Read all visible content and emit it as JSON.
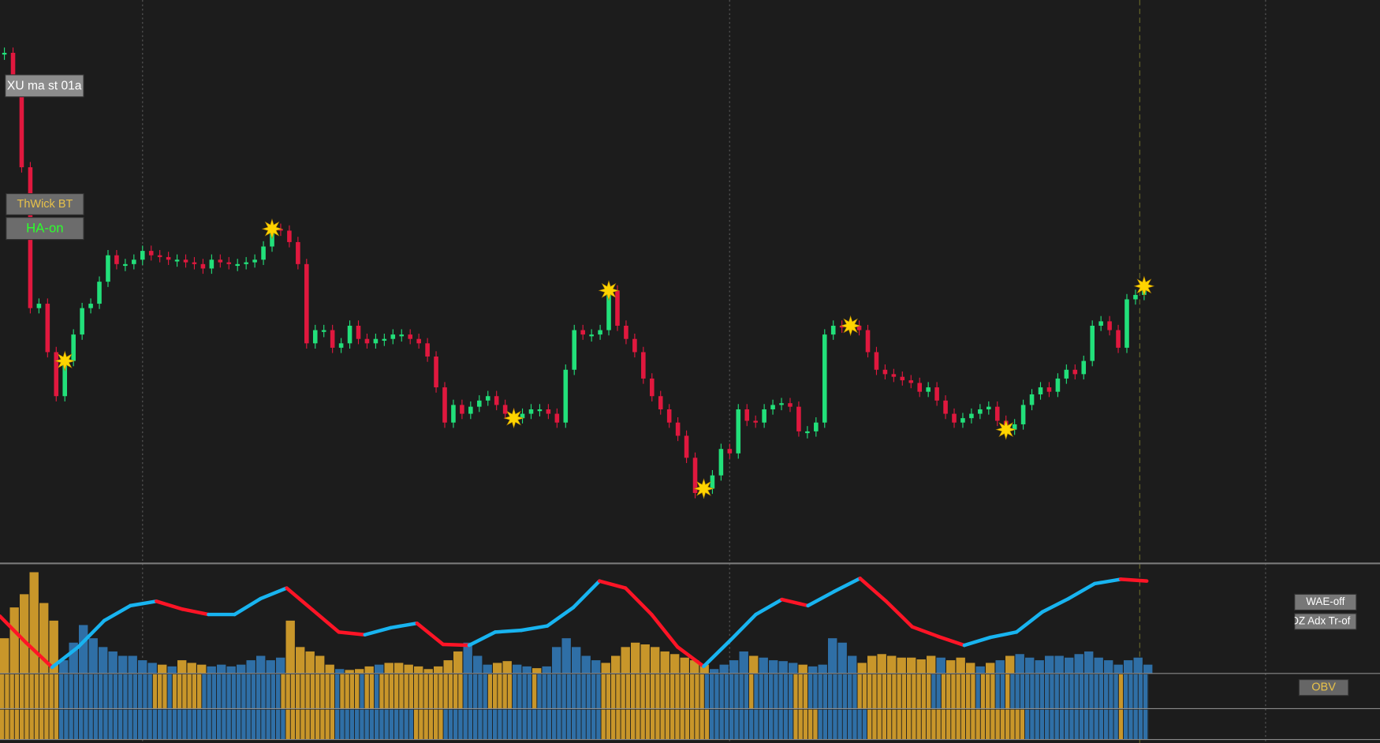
{
  "buttons": {
    "ma": "XU ma st 01a",
    "thwick": "ThWick BT",
    "ha": "HA-on",
    "wae": "WAE-off",
    "adx": "DZ Adx Tr-of",
    "obv": "OBV"
  },
  "chart_data": {
    "type": "candlestick",
    "ylim": [
      0,
      640
    ],
    "up_color": "#22e07a",
    "down_color": "#e0183e",
    "close": [
      580,
      540,
      450,
      290,
      295,
      240,
      190,
      230,
      260,
      290,
      295,
      320,
      350,
      340,
      340,
      345,
      355,
      350,
      348,
      345,
      345,
      342,
      340,
      335,
      345,
      342,
      340,
      340,
      342,
      345,
      360,
      380,
      378,
      365,
      340,
      250,
      265,
      265,
      245,
      250,
      270,
      255,
      250,
      255,
      255,
      260,
      260,
      255,
      250,
      235,
      200,
      160,
      180,
      170,
      178,
      185,
      190,
      180,
      170,
      165,
      170,
      175,
      175,
      170,
      160,
      220,
      265,
      260,
      260,
      265,
      310,
      270,
      255,
      240,
      210,
      190,
      175,
      160,
      145,
      120,
      80,
      85,
      100,
      130,
      125,
      175,
      162,
      160,
      175,
      180,
      182,
      178,
      150,
      150,
      160,
      260,
      270,
      268,
      270,
      265,
      240,
      220,
      215,
      212,
      208,
      205,
      195,
      200,
      185,
      170,
      160,
      165,
      170,
      175,
      178,
      162,
      152,
      158,
      180,
      192,
      200,
      195,
      210,
      220,
      215,
      230,
      270,
      275,
      265,
      245,
      300,
      305,
      315
    ],
    "signals": [
      7,
      31,
      59,
      70,
      81,
      98,
      116,
      132
    ],
    "signal_color": "#ffd400",
    "oscillator": {
      "ylim": [
        0,
        125
      ],
      "rising_color": "#18b4f0",
      "falling_color": "#ff1426",
      "values": [
        65,
        35,
        7,
        30,
        60,
        77,
        82,
        73,
        67,
        67,
        85,
        97,
        72,
        47,
        44,
        52,
        57,
        33,
        32,
        47,
        49,
        54,
        75,
        105,
        97,
        67,
        30,
        8,
        37,
        67,
        84,
        77,
        93,
        108,
        82,
        53,
        42,
        32,
        41,
        47,
        70,
        85,
        102,
        107,
        105
      ]
    },
    "histogram": {
      "values": [
        40,
        75,
        90,
        115,
        80,
        60,
        15,
        35,
        55,
        40,
        30,
        25,
        20,
        20,
        15,
        12,
        10,
        8,
        15,
        12,
        10,
        8,
        10,
        8,
        10,
        15,
        20,
        15,
        18,
        60,
        30,
        25,
        20,
        10,
        5,
        4,
        5,
        8,
        10,
        12,
        12,
        10,
        8,
        5,
        8,
        15,
        25,
        35,
        20,
        10,
        12,
        14,
        10,
        8,
        6,
        8,
        30,
        40,
        30,
        20,
        15,
        12,
        20,
        30,
        35,
        33,
        30,
        25,
        22,
        18,
        15,
        10,
        5,
        10,
        15,
        25,
        20,
        18,
        15,
        14,
        12,
        10,
        8,
        10,
        40,
        35,
        20,
        12,
        20,
        22,
        20,
        18,
        18,
        16,
        20,
        18,
        15,
        18,
        12,
        8,
        12,
        15,
        20,
        22,
        18,
        15,
        20,
        20,
        18,
        22,
        25,
        18,
        15,
        10,
        15,
        18,
        10
      ]
    },
    "strips": [
      [
        {
          "color": "#c8962a",
          "bars": 12
        },
        {
          "color": "#2f6fa6",
          "bars": 19
        },
        {
          "color": "#c8962a",
          "bars": 3
        },
        {
          "color": "#2f6fa6",
          "bars": 1
        },
        {
          "color": "#c8962a",
          "bars": 6
        },
        {
          "color": "#2f6fa6",
          "bars": 16
        },
        {
          "color": "#c8962a",
          "bars": 11
        },
        {
          "color": "#2f6fa6",
          "bars": 1
        },
        {
          "color": "#c8962a",
          "bars": 4
        },
        {
          "color": "#2f6fa6",
          "bars": 1
        },
        {
          "color": "#c8962a",
          "bars": 2
        },
        {
          "color": "#2f6fa6",
          "bars": 1
        },
        {
          "color": "#c8962a",
          "bars": 17
        },
        {
          "color": "#2f6fa6",
          "bars": 5
        },
        {
          "color": "#c8962a",
          "bars": 5
        },
        {
          "color": "#2f6fa6",
          "bars": 4
        },
        {
          "color": "#c8962a",
          "bars": 1
        },
        {
          "color": "#2f6fa6",
          "bars": 13
        },
        {
          "color": "#c8962a",
          "bars": 21
        },
        {
          "color": "#2f6fa6",
          "bars": 9
        },
        {
          "color": "#c8962a",
          "bars": 1
        },
        {
          "color": "#2f6fa6",
          "bars": 8
        },
        {
          "color": "#c8962a",
          "bars": 3
        },
        {
          "color": "#2f6fa6",
          "bars": 10
        },
        {
          "color": "#c8962a",
          "bars": 15
        },
        {
          "color": "#2f6fa6",
          "bars": 2
        },
        {
          "color": "#c8962a",
          "bars": 7
        },
        {
          "color": "#2f6fa6",
          "bars": 1
        },
        {
          "color": "#c8962a",
          "bars": 3
        },
        {
          "color": "#2f6fa6",
          "bars": 2
        },
        {
          "color": "#c8962a",
          "bars": 1
        },
        {
          "color": "#2f6fa6",
          "bars": 22
        },
        {
          "color": "#c8962a",
          "bars": 1
        },
        {
          "color": "#2f6fa6",
          "bars": 5
        }
      ],
      [
        {
          "color": "#c8962a",
          "bars": 12
        },
        {
          "color": "#2f6fa6",
          "bars": 46
        },
        {
          "color": "#c8962a",
          "bars": 10
        },
        {
          "color": "#2f6fa6",
          "bars": 16
        },
        {
          "color": "#c8962a",
          "bars": 6
        },
        {
          "color": "#2f6fa6",
          "bars": 32
        },
        {
          "color": "#c8962a",
          "bars": 22
        },
        {
          "color": "#2f6fa6",
          "bars": 17
        },
        {
          "color": "#c8962a",
          "bars": 5
        },
        {
          "color": "#2f6fa6",
          "bars": 10
        },
        {
          "color": "#c8962a",
          "bars": 32
        },
        {
          "color": "#2f6fa6",
          "bars": 19
        },
        {
          "color": "#c8962a",
          "bars": 1
        },
        {
          "color": "#2f6fa6",
          "bars": 5
        }
      ]
    ]
  }
}
